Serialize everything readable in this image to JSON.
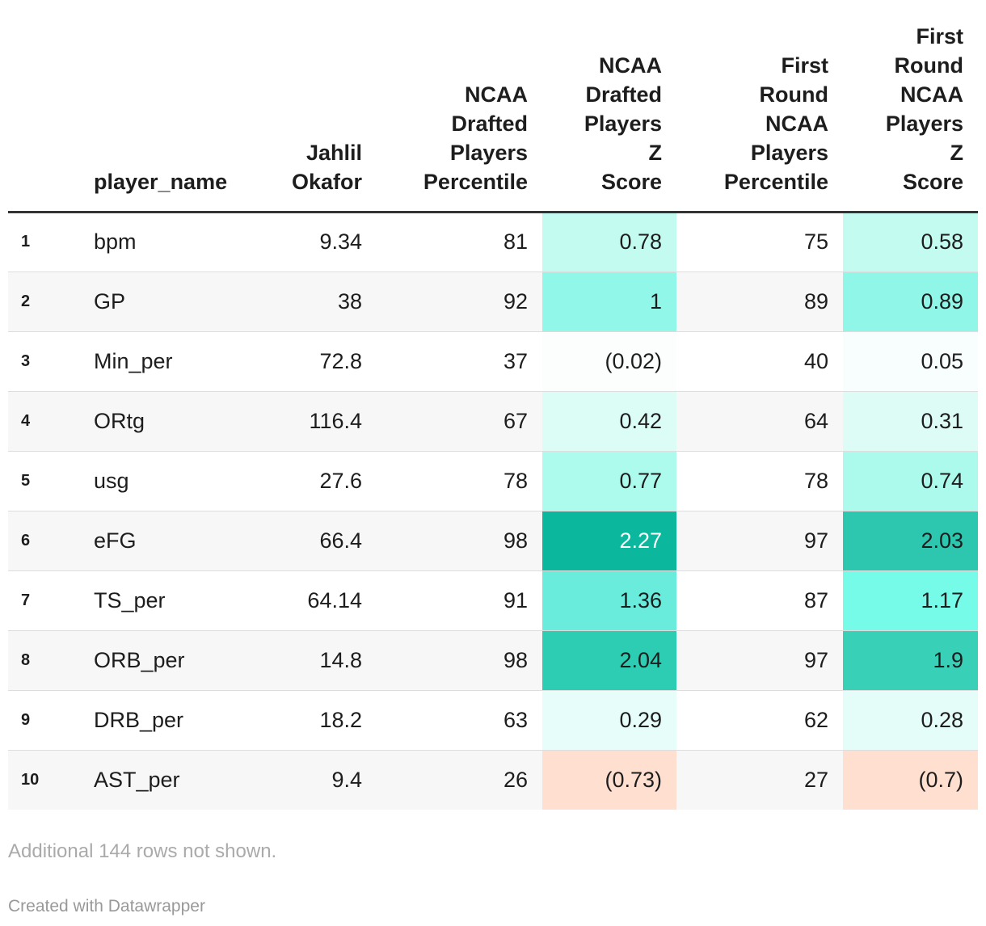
{
  "chart_data": {
    "type": "table",
    "columns": [
      {
        "key": "idx",
        "label": ""
      },
      {
        "key": "player_name",
        "label": "player_name"
      },
      {
        "key": "jahlil_okafor",
        "label": "Jahlil Okafor"
      },
      {
        "key": "ncaa_pct",
        "label": "NCAA Drafted Players Percentile"
      },
      {
        "key": "ncaa_z",
        "label": "NCAA Drafted Players Z Score"
      },
      {
        "key": "fr_pct",
        "label": "First Round NCAA Players Percentile"
      },
      {
        "key": "fr_z",
        "label": "First Round NCAA Players Z Score"
      }
    ],
    "header_lines": {
      "player_name": [
        "player_name"
      ],
      "jahlil_okafor": [
        "Jahlil",
        "Okafor"
      ],
      "ncaa_pct": [
        "NCAA",
        "Drafted",
        "Players",
        "Percentile"
      ],
      "ncaa_z": [
        "NCAA",
        "Drafted",
        "Players",
        "Z",
        "Score"
      ],
      "fr_pct": [
        "First",
        "Round",
        "NCAA",
        "Players",
        "Percentile"
      ],
      "fr_z": [
        "First",
        "Round",
        "NCAA",
        "Players",
        "Z",
        "Score"
      ]
    },
    "rows": [
      {
        "idx": "1",
        "player_name": "bpm",
        "jahlil_okafor": "9.34",
        "ncaa_pct": "81",
        "ncaa_z": "0.78",
        "fr_pct": "75",
        "fr_z": "0.58"
      },
      {
        "idx": "2",
        "player_name": "GP",
        "jahlil_okafor": "38",
        "ncaa_pct": "92",
        "ncaa_z": "1",
        "fr_pct": "89",
        "fr_z": "0.89"
      },
      {
        "idx": "3",
        "player_name": "Min_per",
        "jahlil_okafor": "72.8",
        "ncaa_pct": "37",
        "ncaa_z": "(0.02)",
        "fr_pct": "40",
        "fr_z": "0.05"
      },
      {
        "idx": "4",
        "player_name": "ORtg",
        "jahlil_okafor": "116.4",
        "ncaa_pct": "67",
        "ncaa_z": "0.42",
        "fr_pct": "64",
        "fr_z": "0.31"
      },
      {
        "idx": "5",
        "player_name": "usg",
        "jahlil_okafor": "27.6",
        "ncaa_pct": "78",
        "ncaa_z": "0.77",
        "fr_pct": "78",
        "fr_z": "0.74"
      },
      {
        "idx": "6",
        "player_name": "eFG",
        "jahlil_okafor": "66.4",
        "ncaa_pct": "98",
        "ncaa_z": "2.27",
        "fr_pct": "97",
        "fr_z": "2.03"
      },
      {
        "idx": "7",
        "player_name": "TS_per",
        "jahlil_okafor": "64.14",
        "ncaa_pct": "91",
        "ncaa_z": "1.36",
        "fr_pct": "87",
        "fr_z": "1.17"
      },
      {
        "idx": "8",
        "player_name": "ORB_per",
        "jahlil_okafor": "14.8",
        "ncaa_pct": "98",
        "ncaa_z": "2.04",
        "fr_pct": "97",
        "fr_z": "1.9"
      },
      {
        "idx": "9",
        "player_name": "DRB_per",
        "jahlil_okafor": "18.2",
        "ncaa_pct": "63",
        "ncaa_z": "0.29",
        "fr_pct": "62",
        "fr_z": "0.28"
      },
      {
        "idx": "10",
        "player_name": "AST_per",
        "jahlil_okafor": "9.4",
        "ncaa_pct": "26",
        "ncaa_z": "(0.73)",
        "fr_pct": "27",
        "fr_z": "(0.7)"
      }
    ],
    "heat_colors": {
      "ncaa_z": [
        "#c4fbf0",
        "#91f7e9",
        "#fbfefd",
        "#dcfcf6",
        "#acfbec",
        "#0bb79d",
        "#69ecdb",
        "#2ccdb3",
        "#e6fdf9",
        "#ffdfcf"
      ],
      "fr_z": [
        "#c4fbf0",
        "#8ff6e8",
        "#f8fefd",
        "#defcf6",
        "#abfaec",
        "#2cc7ae",
        "#76fbe9",
        "#38d0b6",
        "#e5fdf8",
        "#ffdfcf"
      ],
      "dark_text_white": [
        "#0bb79d"
      ]
    }
  },
  "footer": {
    "note": "Additional 144 rows not shown.",
    "credit": "Created with Datawrapper"
  }
}
